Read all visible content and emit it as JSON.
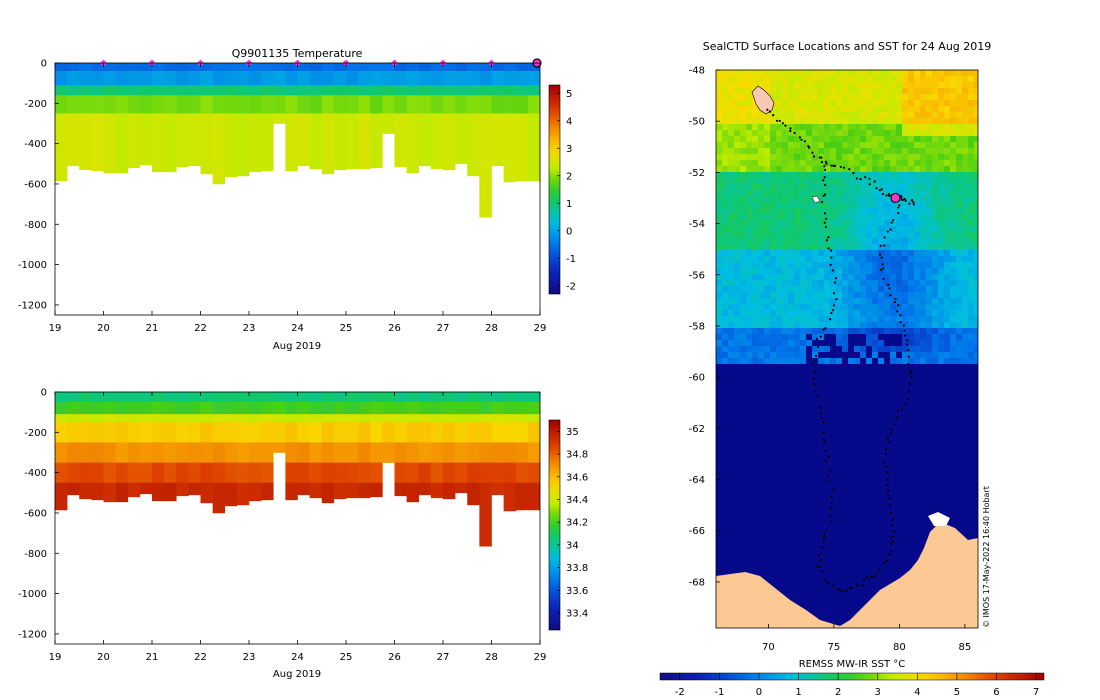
{
  "chart_data": [
    {
      "type": "heatmap",
      "id": "temperature",
      "title": "Q9901135  Temperature",
      "xlabel": "Aug 2019",
      "ylabel": "",
      "x_ticks": [
        "19",
        "20",
        "21",
        "22",
        "23",
        "24",
        "25",
        "26",
        "27",
        "28",
        "29"
      ],
      "x_range": [
        19,
        29
      ],
      "y_ticks": [
        "0",
        "-200",
        "-400",
        "-600",
        "-800",
        "-1000",
        "-1200"
      ],
      "y_range": [
        -1250,
        0
      ],
      "colorbar": {
        "ticks": [
          "5",
          "4",
          "3",
          "2",
          "1",
          "0",
          "-1",
          "-2"
        ],
        "range": [
          -2.3,
          5.3
        ]
      },
      "surface_markers_x": [
        20,
        21,
        22,
        23,
        24,
        25,
        26,
        27,
        28
      ],
      "current_marker_x": 29,
      "profile_days": [
        19.0,
        19.25,
        19.5,
        19.75,
        20.0,
        20.25,
        20.5,
        20.75,
        21.0,
        21.25,
        21.5,
        21.75,
        22.0,
        22.25,
        22.5,
        22.75,
        23.0,
        23.25,
        23.5,
        23.75,
        24.0,
        24.25,
        24.5,
        24.75,
        25.0,
        25.25,
        25.5,
        25.75,
        26.0,
        26.25,
        26.5,
        26.75,
        27.0,
        27.25,
        27.5,
        27.75,
        28.0,
        28.25,
        28.5,
        28.75
      ],
      "profile_depths": [
        -585,
        -510,
        -530,
        -535,
        -545,
        -545,
        -520,
        -505,
        -540,
        -540,
        -515,
        -510,
        -550,
        -600,
        -565,
        -560,
        -540,
        -535,
        -300,
        -535,
        -510,
        -525,
        -550,
        -530,
        -525,
        -525,
        -520,
        -350,
        -515,
        -545,
        -510,
        -525,
        -530,
        -500,
        -560,
        -765,
        -510,
        -590,
        -585,
        -585
      ],
      "layers": [
        {
          "to": -40,
          "value": -0.6
        },
        {
          "to": -110,
          "value": -0.1
        },
        {
          "to": -160,
          "value": 1.0
        },
        {
          "to": -250,
          "value": 1.9
        },
        {
          "to": -2000,
          "value": 2.4
        }
      ]
    },
    {
      "type": "heatmap",
      "id": "salinity",
      "title": "",
      "xlabel": "Aug 2019",
      "ylabel": "",
      "x_ticks": [
        "19",
        "20",
        "21",
        "22",
        "23",
        "24",
        "25",
        "26",
        "27",
        "28",
        "29"
      ],
      "x_range": [
        19,
        29
      ],
      "y_ticks": [
        "0",
        "-200",
        "-400",
        "-600",
        "-800",
        "-1000",
        "-1200"
      ],
      "y_range": [
        -1250,
        0
      ],
      "colorbar": {
        "ticks": [
          "35",
          "34.8",
          "34.6",
          "34.4",
          "34.2",
          "34",
          "33.8",
          "33.6",
          "33.4"
        ],
        "range": [
          33.25,
          35.1
        ]
      },
      "layers": [
        {
          "to": -50,
          "value": 34.05
        },
        {
          "to": -110,
          "value": 34.2
        },
        {
          "to": -150,
          "value": 34.4
        },
        {
          "to": -250,
          "value": 34.55
        },
        {
          "to": -350,
          "value": 34.7
        },
        {
          "to": -450,
          "value": 34.85
        },
        {
          "to": -2000,
          "value": 34.95
        }
      ]
    },
    {
      "type": "heatmap",
      "id": "sst_map",
      "title": "SealCTD Surface Locations and SST for 24 Aug 2019",
      "xlabel": "",
      "ylabel": "",
      "colorbar_label": "REMSS MW-IR SST °C",
      "x_ticks": [
        "70",
        "75",
        "80",
        "85"
      ],
      "x_range": [
        66,
        86
      ],
      "y_ticks": [
        "-48",
        "-50",
        "-52",
        "-54",
        "-56",
        "-58",
        "-60",
        "-62",
        "-64",
        "-66",
        "-68"
      ],
      "y_range": [
        -69.8,
        -48
      ],
      "colorbar": {
        "ticks": [
          "-2",
          "-1",
          "0",
          "1",
          "2",
          "3",
          "4",
          "5",
          "6",
          "7"
        ],
        "range": [
          -2.5,
          7.2
        ]
      },
      "credit": "© IMOS 17-May-2022 16:40 Hobart",
      "current_position": {
        "lon": 79.7,
        "lat": -53.0
      },
      "track": [
        [
          69.8,
          -49.6
        ],
        [
          70.8,
          -50.0
        ],
        [
          71.8,
          -50.4
        ],
        [
          72.8,
          -50.8
        ],
        [
          73.6,
          -51.3
        ],
        [
          74.4,
          -51.6
        ],
        [
          75.5,
          -51.8
        ],
        [
          76.6,
          -52.1
        ],
        [
          77.6,
          -52.3
        ],
        [
          78.4,
          -52.6
        ],
        [
          79.2,
          -52.9
        ],
        [
          79.7,
          -53.0
        ],
        [
          80.4,
          -53.0
        ],
        [
          81.2,
          -53.2
        ],
        [
          80.3,
          -53.1
        ],
        [
          79.6,
          -53.8
        ],
        [
          78.9,
          -54.6
        ],
        [
          78.5,
          -55.3
        ],
        [
          78.8,
          -56.1
        ],
        [
          79.6,
          -56.9
        ],
        [
          80.1,
          -57.6
        ],
        [
          80.5,
          -58.4
        ],
        [
          80.7,
          -59.2
        ],
        [
          80.8,
          -60.1
        ],
        [
          80.4,
          -61.0
        ],
        [
          79.6,
          -61.8
        ],
        [
          79.1,
          -62.6
        ],
        [
          78.9,
          -63.5
        ],
        [
          79.1,
          -64.4
        ],
        [
          79.4,
          -65.3
        ],
        [
          79.5,
          -66.2
        ],
        [
          79.2,
          -67.0
        ],
        [
          78.2,
          -67.6
        ],
        [
          77.4,
          -68.0
        ],
        [
          76.4,
          -68.3
        ],
        [
          75.4,
          -68.4
        ],
        [
          74.4,
          -68.0
        ],
        [
          73.8,
          -67.3
        ],
        [
          74.1,
          -66.5
        ],
        [
          74.7,
          -65.7
        ],
        [
          74.9,
          -64.6
        ],
        [
          74.6,
          -63.6
        ],
        [
          74.3,
          -62.6
        ],
        [
          74.0,
          -61.6
        ],
        [
          73.7,
          -60.6
        ],
        [
          73.4,
          -59.6
        ],
        [
          73.8,
          -58.6
        ],
        [
          74.6,
          -57.8
        ],
        [
          75.1,
          -56.9
        ],
        [
          75.0,
          -55.9
        ],
        [
          74.6,
          -54.9
        ],
        [
          74.3,
          -54.0
        ],
        [
          74.2,
          -53.0
        ],
        [
          74.3,
          -52.1
        ],
        [
          74.5,
          -51.5
        ]
      ]
    }
  ]
}
